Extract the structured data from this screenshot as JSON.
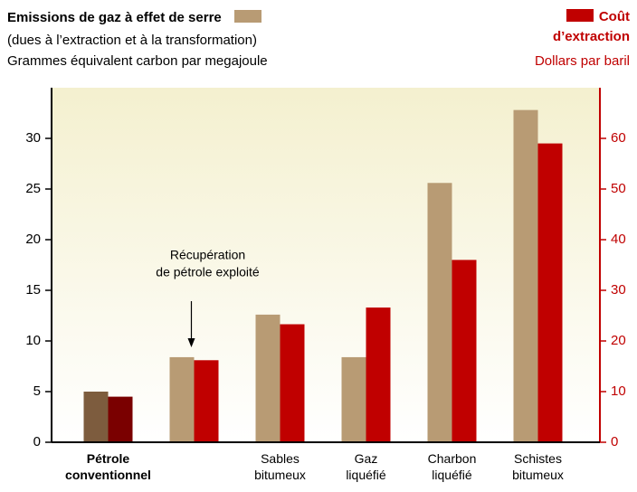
{
  "chart_data": {
    "type": "bar",
    "subtitle": [
      "(dues à l’extraction et à la transformation)",
      "Grammes équivalent carbon par megajoule"
    ],
    "y2_label": "Dollars par baril",
    "annotation": [
      "Récupération",
      "de pétrole exploité"
    ],
    "categories": [
      "Pétrole conventionnel",
      null,
      "Sables bitumeux",
      "Gaz liquéfié",
      "Charbon liquéfié",
      "Schistes bitumeux"
    ],
    "series": [
      {
        "name": "Emissions de gaz à effet de serre",
        "color": "#b89b74",
        "colors": [
          "#7d5c3e",
          "#b89b74",
          "#b89b74",
          "#b89b74",
          "#b89b74",
          "#b89b74"
        ],
        "values": [
          5.0,
          8.4,
          12.6,
          8.4,
          25.6,
          32.8
        ]
      },
      {
        "name": "Coût d’extraction",
        "color": "#c00000",
        "colors": [
          "#7a0000",
          "#c00000",
          "#c00000",
          "#c00000",
          "#c00000",
          "#c00000"
        ],
        "axis": "y2",
        "values": [
          9,
          16.2,
          23.3,
          26.6,
          36,
          59
        ]
      }
    ],
    "ylim": [
      0,
      35
    ],
    "yticks": [
      0,
      5,
      10,
      15,
      20,
      25,
      30
    ],
    "y2lim": [
      0,
      70
    ],
    "y2ticks": [
      0,
      10,
      20,
      30,
      40,
      50,
      60
    ]
  }
}
